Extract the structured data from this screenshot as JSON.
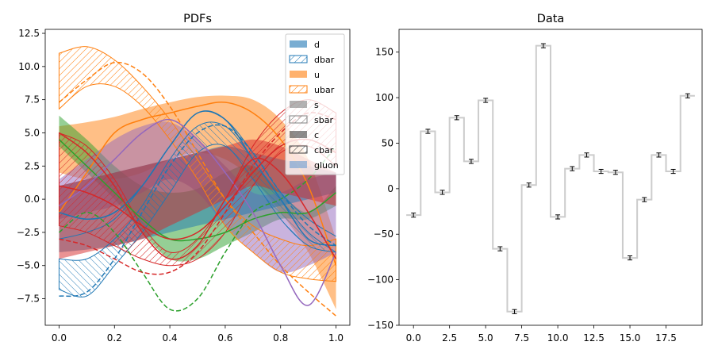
{
  "chart_data": [
    {
      "type": "line",
      "title": "PDFs",
      "xlim": [
        -0.05,
        1.05
      ],
      "ylim": [
        -9.5,
        12.8
      ],
      "xticks": [
        0.0,
        0.2,
        0.4,
        0.6,
        0.8,
        1.0
      ],
      "xtick_labels": [
        "0.0",
        "0.2",
        "0.4",
        "0.6",
        "0.8",
        "1.0"
      ],
      "yticks": [
        -7.5,
        -5.0,
        -2.5,
        0.0,
        2.5,
        5.0,
        7.5,
        10.0,
        12.5
      ],
      "ytick_labels": [
        "−7.5",
        "−5.0",
        "−2.5",
        "0.0",
        "2.5",
        "5.0",
        "7.5",
        "10.0",
        "12.5"
      ],
      "legend_placement": "upper right",
      "legend": [
        {
          "label": "d",
          "style": "fill",
          "color": "#1f77b4"
        },
        {
          "label": "dbar",
          "style": "hatch",
          "color": "#1f77b4"
        },
        {
          "label": "u",
          "style": "fill",
          "color": "#ff7f0e"
        },
        {
          "label": "ubar",
          "style": "hatch",
          "color": "#ff7f0e"
        },
        {
          "label": "s",
          "style": "fill",
          "color": "#7f7f7f"
        },
        {
          "label": "sbar",
          "style": "hatch",
          "color": "#7f7f7f"
        },
        {
          "label": "c",
          "style": "fill",
          "color": "#404040"
        },
        {
          "label": "cbar",
          "style": "hatch",
          "color": "#404040"
        },
        {
          "label": "gluon",
          "style": "fill",
          "color": "#6a9bd1"
        }
      ],
      "x": [
        0.0,
        0.1,
        0.2,
        0.3,
        0.4,
        0.5,
        0.6,
        0.7,
        0.8,
        0.9,
        1.0
      ],
      "bands": [
        {
          "color": "#ff7f0e",
          "style": "fill",
          "upper": [
            5.5,
            5.8,
            6.2,
            6.8,
            7.3,
            7.7,
            7.8,
            7.5,
            6.0,
            3.0,
            -3.0
          ],
          "lower": [
            2.0,
            1.5,
            1.5,
            2.0,
            3.0,
            3.5,
            3.0,
            1.5,
            -1.0,
            -4.0,
            -8.3
          ]
        },
        {
          "color": "#2ca02c",
          "style": "fill",
          "upper": [
            6.3,
            4.5,
            2.5,
            1.0,
            0.5,
            0.8,
            2.0,
            2.5,
            0.5,
            -1.0,
            1.0
          ],
          "lower": [
            4.0,
            2.0,
            0.0,
            -2.5,
            -4.5,
            -4.5,
            -3.5,
            -2.5,
            -1.5,
            -1.5,
            -0.5
          ]
        },
        {
          "color": "#9467bd",
          "style": "fill",
          "upper": [
            1.5,
            3.0,
            4.5,
            5.5,
            5.8,
            4.5,
            2.5,
            0.5,
            0.5,
            1.5,
            2.0
          ],
          "lower": [
            -1.5,
            -1.0,
            -0.5,
            0.5,
            1.5,
            0.5,
            -2.0,
            -4.0,
            -5.5,
            -5.0,
            -4.0
          ]
        },
        {
          "color": "#1f77b4",
          "style": "fill",
          "upper": [
            1.0,
            1.5,
            2.0,
            2.5,
            3.0,
            3.5,
            4.0,
            3.5,
            3.0,
            2.5,
            2.0
          ],
          "lower": [
            -4.0,
            -3.8,
            -3.5,
            -3.0,
            -2.5,
            -2.0,
            -1.5,
            -1.0,
            -0.5,
            0.0,
            0.5
          ]
        },
        {
          "color": "#d62728",
          "style": "fill",
          "upper": [
            1.0,
            1.5,
            2.0,
            2.5,
            3.0,
            3.5,
            4.0,
            4.5,
            4.0,
            3.0,
            2.0
          ],
          "lower": [
            -4.5,
            -4.0,
            -3.5,
            -3.0,
            -2.0,
            -1.0,
            0.0,
            1.0,
            0.5,
            0.0,
            -0.5
          ]
        },
        {
          "color": "#ff7f0e",
          "style": "hatch",
          "upper": [
            11.0,
            11.5,
            10.5,
            8.5,
            6.0,
            3.0,
            0.0,
            -2.0,
            -3.0,
            -3.5,
            -3.0
          ],
          "lower": [
            6.8,
            8.5,
            8.5,
            7.0,
            4.5,
            1.5,
            -2.0,
            -4.0,
            -5.5,
            -6.0,
            -6.2
          ]
        },
        {
          "color": "#1f77b4",
          "style": "hatch",
          "upper": [
            -3.0,
            -2.5,
            -1.5,
            1.0,
            4.0,
            6.5,
            6.0,
            3.5,
            0.5,
            -1.5,
            -2.8
          ]
        },
        {
          "color": "#1f77b4",
          "style": "hatch2",
          "upper": [
            -4.5,
            -4.5,
            -3.0,
            -0.5,
            3.0,
            5.5,
            5.5,
            3.0,
            0.0,
            -2.5,
            -4.0
          ],
          "lower": [
            -6.8,
            -7.3,
            -5.0,
            -2.5,
            0.5,
            3.5,
            4.0,
            1.5,
            -1.5,
            -3.5,
            -4.0
          ]
        },
        {
          "color": "#d62728",
          "style": "hatch",
          "upper": [
            5.0,
            4.0,
            1.5,
            -2.0,
            -4.0,
            -3.0,
            0.0,
            4.0,
            6.5,
            7.5,
            6.5
          ],
          "lower": [
            -2.0,
            -2.5,
            -3.5,
            -4.5,
            -5.0,
            -4.5,
            -2.5,
            1.0,
            3.5,
            4.0,
            2.5
          ]
        }
      ],
      "lines": [
        {
          "color": "#ff7f0e",
          "dash": true,
          "y": [
            7.3,
            9.0,
            10.3,
            9.5,
            7.0,
            3.5,
            0.0,
            -2.5,
            -5.0,
            -7.0,
            -8.8
          ]
        },
        {
          "color": "#ff7f0e",
          "dash": false,
          "y": [
            -1.0,
            2.0,
            5.0,
            6.0,
            6.5,
            7.0,
            7.3,
            6.5,
            4.5,
            1.0,
            -5.0
          ]
        },
        {
          "color": "#2ca02c",
          "dash": true,
          "y": [
            -2.5,
            -1.0,
            -2.5,
            -5.5,
            -8.3,
            -7.5,
            -4.0,
            -1.0,
            0.0,
            1.5,
            4.0
          ]
        },
        {
          "color": "#2ca02c",
          "dash": false,
          "y": [
            4.5,
            2.5,
            0.5,
            -1.5,
            -3.0,
            -3.0,
            -2.5,
            -1.5,
            -1.0,
            -1.0,
            0.5
          ]
        },
        {
          "color": "#1f77b4",
          "dash": true,
          "y": [
            -7.3,
            -7.0,
            -4.5,
            -1.0,
            2.5,
            5.0,
            5.5,
            3.5,
            0.5,
            -2.0,
            -3.5
          ]
        },
        {
          "color": "#1f77b4",
          "dash": false,
          "y": [
            -1.0,
            -1.5,
            -1.0,
            1.0,
            4.0,
            6.5,
            6.0,
            3.0,
            0.0,
            -3.0,
            -3.5
          ]
        },
        {
          "color": "#9467bd",
          "dash": false,
          "y": [
            -0.5,
            1.0,
            3.0,
            5.0,
            6.0,
            4.5,
            2.0,
            -1.0,
            -5.0,
            -8.0,
            -4.0
          ]
        },
        {
          "color": "#d62728",
          "dash": true,
          "y": [
            -3.0,
            -3.5,
            -4.5,
            -5.5,
            -5.5,
            -4.0,
            -1.0,
            2.5,
            5.0,
            6.5,
            6.0
          ]
        },
        {
          "color": "#d62728",
          "dash": false,
          "y": [
            1.0,
            0.5,
            -0.5,
            -2.0,
            -3.0,
            -2.5,
            -0.5,
            2.0,
            4.0,
            4.5,
            3.5
          ]
        },
        {
          "color": "#d62728",
          "dash": false,
          "y": [
            5.0,
            3.5,
            1.0,
            -2.5,
            -4.5,
            -3.5,
            0.0,
            3.0,
            2.0,
            -1.0,
            -4.5
          ]
        }
      ]
    },
    {
      "type": "step",
      "title": "Data",
      "xlim": [
        -1.0,
        20.0
      ],
      "ylim": [
        -150,
        175
      ],
      "xticks": [
        0.0,
        2.5,
        5.0,
        7.5,
        10.0,
        12.5,
        15.0,
        17.5
      ],
      "xtick_labels": [
        "0.0",
        "2.5",
        "5.0",
        "7.5",
        "10.0",
        "12.5",
        "15.0",
        "17.5"
      ],
      "yticks": [
        -150,
        -100,
        -50,
        0,
        50,
        100,
        150
      ],
      "ytick_labels": [
        "−150",
        "−100",
        "−50",
        "0",
        "50",
        "100",
        "150"
      ],
      "step_color": "#cccccc",
      "x": [
        0,
        1,
        2,
        3,
        4,
        5,
        6,
        7,
        8,
        9,
        10,
        11,
        12,
        13,
        14,
        15,
        16,
        17,
        18,
        19
      ],
      "values": [
        -29,
        63,
        -4,
        78,
        30,
        97,
        -66,
        -135,
        4,
        157,
        -31,
        22,
        37,
        19,
        18,
        -76,
        -12,
        37,
        19,
        102
      ],
      "errors": [
        1.2,
        1.2,
        1.2,
        1.2,
        1.2,
        1.2,
        1.2,
        1.2,
        1.2,
        1.2,
        1.2,
        1.2,
        1.2,
        1.2,
        1.2,
        1.2,
        1.2,
        1.2,
        1.2,
        1.2
      ]
    }
  ]
}
